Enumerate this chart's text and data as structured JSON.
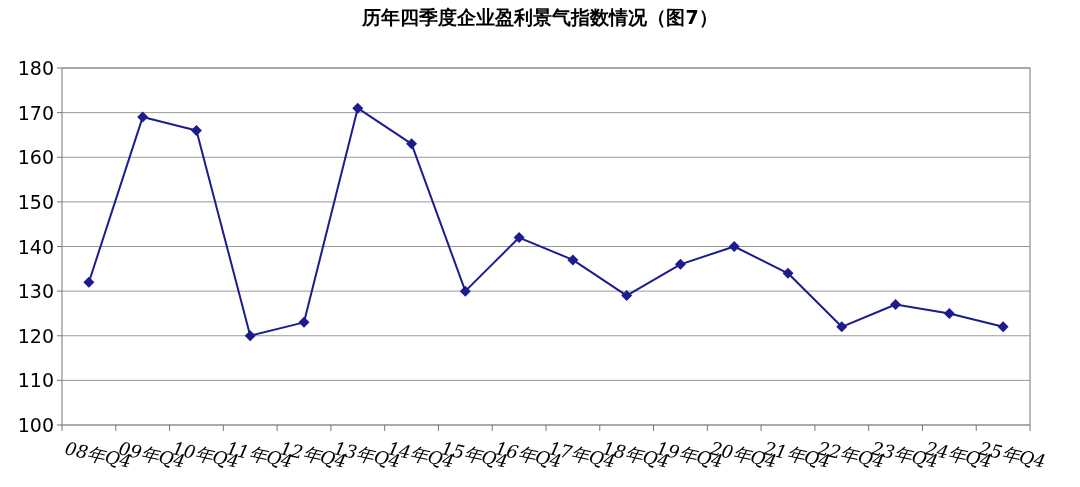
{
  "chart_data": {
    "type": "line",
    "title": "历年四季度企业盈利景气指数情况（图7）",
    "categories": [
      "08年Q4",
      "09年Q4",
      "10年Q4",
      "11年Q4",
      "12年Q4",
      "13年Q4",
      "14年Q4",
      "15年Q4",
      "16年Q4",
      "17年Q4",
      "18年Q4",
      "19年Q4",
      "20年Q4",
      "21年Q4",
      "22年Q4",
      "23年Q4",
      "24年Q4",
      "25年Q4"
    ],
    "values": [
      132,
      169,
      166,
      120,
      123,
      171,
      163,
      130,
      142,
      137,
      129,
      136,
      140,
      134,
      122,
      127,
      125,
      122
    ],
    "color": "#1c1c8c",
    "ylim": [
      100,
      180
    ],
    "yticks": [
      100,
      110,
      120,
      130,
      140,
      150,
      160,
      170,
      180
    ],
    "grid": "y",
    "marker": "diamond",
    "line_style": "solid"
  }
}
